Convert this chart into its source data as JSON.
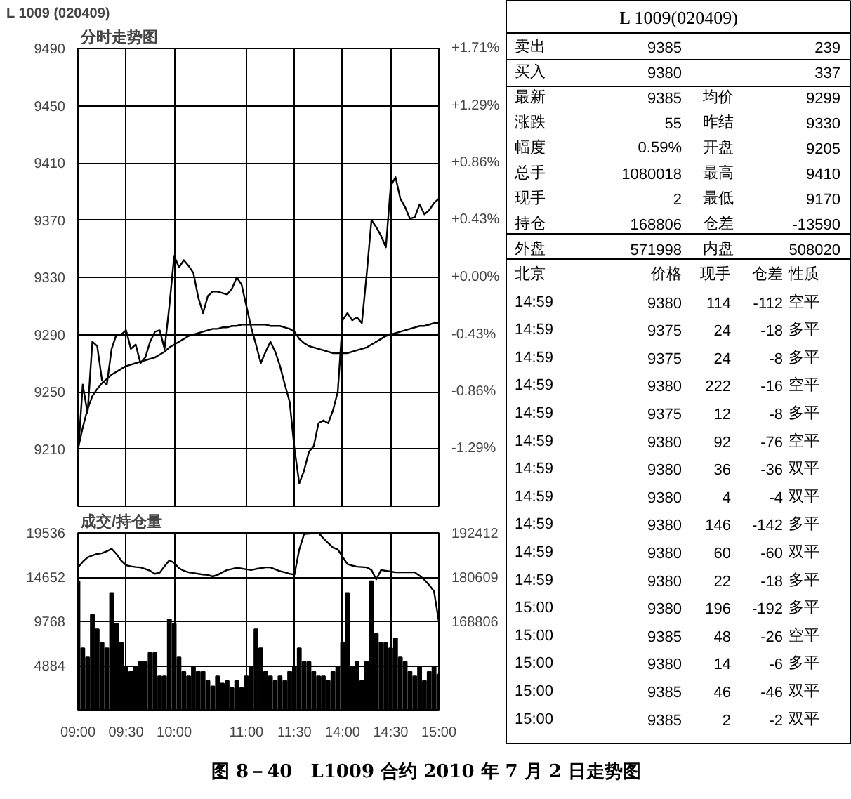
{
  "chart_data": [
    {
      "type": "line",
      "title": "分时走势图",
      "annotations": [
        "L    1009 (020409)"
      ],
      "categories": [
        null,
        null,
        null,
        null,
        null,
        null,
        null,
        null,
        null,
        null,
        null,
        null,
        null,
        null,
        null,
        null,
        null,
        null,
        null,
        null,
        null,
        null,
        null,
        null,
        null,
        null,
        null,
        null,
        null,
        null,
        null,
        null,
        null,
        null,
        null,
        null,
        null,
        null,
        null,
        null,
        null,
        null,
        null,
        null,
        null,
        null,
        null,
        null,
        null,
        null,
        null,
        null,
        null,
        null,
        null,
        null,
        null,
        null,
        null,
        null,
        null,
        null,
        null,
        null,
        null,
        null,
        null,
        null,
        null,
        null,
        null,
        null,
        null,
        null,
        null,
        null
      ],
      "ylim": [
        9170,
        9490
      ],
      "yticks": [
        9210,
        9250,
        9290,
        9330,
        9370,
        9410,
        9450,
        9490
      ],
      "y2lim": [
        -1.715,
        1.715
      ],
      "y2ticks": [
        {
          "value": -1.286,
          "label": "-1.29%"
        },
        {
          "value": -0.857,
          "label": "-0.86%"
        },
        {
          "value": -0.429,
          "label": "-0.43%"
        },
        {
          "value": 0,
          "label": "+0.00%"
        },
        {
          "value": 0.429,
          "label": "+0.43%"
        },
        {
          "value": 0.857,
          "label": "+0.86%"
        },
        {
          "value": 1.286,
          "label": "+1.29%"
        },
        {
          "value": 1.715,
          "label": "+1.71%"
        }
      ],
      "grid": true,
      "tick_labels": "y",
      "series": [
        {
          "color": "#000000",
          "values": [
            9205,
            9255,
            9235,
            9285,
            9282,
            9258,
            9255,
            9280,
            9290,
            9290,
            9293,
            9280,
            9283,
            9270,
            9274,
            9285,
            9292,
            9293,
            9280,
            9310,
            9345,
            9337,
            9342,
            9338,
            9333,
            9316,
            9305,
            9317,
            9320,
            9320,
            9319,
            9318,
            9322,
            9330,
            9325,
            9310,
            9295,
            9283,
            9270,
            9278,
            9285,
            9278,
            9268,
            9255,
            9243,
            9210,
            9186,
            9195,
            9208,
            9212,
            9228,
            9230,
            9228,
            9237,
            9250,
            9300,
            9305,
            9300,
            9302,
            9298,
            9332,
            9370,
            9365,
            9359,
            9351,
            9394,
            9400,
            9385,
            9379,
            9371,
            9372,
            9381,
            9374,
            9377,
            9382,
            9385
          ]
        },
        {
          "color": "#000000",
          "values": [
            9210,
            9225,
            9238,
            9247,
            9252,
            9256,
            9259,
            9262,
            9264,
            9266,
            9268,
            9269,
            9270,
            9271,
            9272,
            9273,
            9274,
            9276,
            9278,
            9281,
            9283,
            9285,
            9287,
            9289,
            9290,
            9291,
            9292,
            9293,
            9294,
            9294,
            9295,
            9295,
            9296,
            9296,
            9297,
            9297,
            9297,
            9297,
            9297,
            9297,
            9296,
            9296,
            9296,
            9295,
            9294,
            9292,
            9287,
            9284,
            9282,
            9281,
            9280,
            9279,
            9278,
            9277,
            9277,
            9277,
            9277,
            9278,
            9279,
            9280,
            9281,
            9283,
            9285,
            9287,
            9289,
            9290,
            9291,
            9292,
            9293,
            9294,
            9295,
            9296,
            9296,
            9297,
            9298,
            9298
          ]
        }
      ]
    },
    {
      "type": "bar",
      "title": "成交/持仓量",
      "categories": [
        "09:00",
        null,
        null,
        null,
        null,
        null,
        null,
        null,
        null,
        null,
        "09:30",
        null,
        null,
        null,
        null,
        null,
        null,
        null,
        null,
        null,
        "10:00",
        null,
        null,
        null,
        null,
        null,
        null,
        null,
        null,
        null,
        null,
        null,
        null,
        null,
        null,
        "11:00",
        null,
        null,
        null,
        null,
        null,
        null,
        null,
        null,
        null,
        "11:30",
        null,
        null,
        null,
        null,
        null,
        null,
        null,
        null,
        null,
        "14:00",
        null,
        null,
        null,
        null,
        null,
        null,
        null,
        null,
        null,
        "14:30",
        null,
        null,
        null,
        null,
        null,
        null,
        null,
        null,
        null,
        "15:00"
      ],
      "ylim": [
        0,
        19536
      ],
      "yticks": [
        4884,
        9768,
        14652,
        19536
      ],
      "y2lim": [
        145200,
        192412
      ],
      "y2ticks": [
        168806,
        180609,
        192412
      ],
      "grid": true,
      "series": [
        {
          "color": "#000000",
          "values": [
            14200,
            6800,
            5800,
            10500,
            8900,
            7400,
            6800,
            12900,
            9500,
            7400,
            4700,
            4200,
            4700,
            5300,
            5300,
            6300,
            6300,
            3700,
            3700,
            10000,
            9500,
            5800,
            4200,
            3700,
            4700,
            4200,
            4200,
            3200,
            2600,
            3700,
            2900,
            3200,
            2400,
            3200,
            2400,
            3700,
            4700,
            8900,
            6800,
            4200,
            3700,
            3200,
            3700,
            3200,
            4200,
            4700,
            6800,
            5300,
            5300,
            4200,
            3700,
            3700,
            3200,
            4200,
            4700,
            7400,
            12900,
            4700,
            5300,
            3200,
            5300,
            14200,
            8400,
            7400,
            7400,
            6800,
            7900,
            5800,
            5300,
            4200,
            3700,
            4700,
            3200,
            4200,
            4700,
            3900
          ]
        },
        {
          "type": "line",
          "axis": "y2",
          "color": "#000000",
          "values": [
            183200,
            184700,
            185900,
            186400,
            186800,
            187000,
            187500,
            188200,
            186800,
            185000,
            183800,
            183500,
            183300,
            183200,
            182800,
            182300,
            181500,
            181800,
            183500,
            185100,
            184400,
            183000,
            182300,
            181900,
            181700,
            181500,
            181300,
            181200,
            180800,
            181200,
            181900,
            182500,
            182800,
            183100,
            182900,
            182700,
            182500,
            182800,
            183000,
            183200,
            183200,
            182700,
            182200,
            181900,
            181500,
            181300,
            188000,
            192100,
            192200,
            192300,
            192400,
            191000,
            189700,
            188500,
            188000,
            186000,
            184100,
            183700,
            183400,
            183300,
            183200,
            182500,
            180000,
            182500,
            182300,
            182100,
            181900,
            181900,
            181900,
            181900,
            181900,
            181000,
            179900,
            178500,
            176800,
            168800
          ]
        }
      ]
    },
    {
      "type": "other",
      "title": "L 1009(020409)",
      "subtitle": "图 8－40　L1009 合约 2010 年 7 月 2 日走势图",
      "annotations": [
        "卖出",
        "9385",
        "239",
        "买入",
        "9380",
        "337",
        "最新",
        "9385",
        "均价",
        "9299",
        "涨跌",
        "55",
        "昨结",
        "9330",
        "幅度",
        "0.59%",
        "开盘",
        "9205",
        "总手",
        "1080018",
        "最高",
        "9410",
        "现手",
        "2",
        "最低",
        "9170",
        "持仓",
        "168806",
        "仓差",
        "-13590",
        "外盘",
        "571998",
        "内盘",
        "508020",
        "北京",
        "价格",
        "现手",
        "仓差",
        "性质",
        "14:59",
        "9380",
        "114",
        "-112",
        "空平",
        "14:59",
        "9375",
        "24",
        "-18",
        "多平",
        "14:59",
        "9375",
        "24",
        "-8",
        "多平",
        "14:59",
        "9380",
        "222",
        "-16",
        "空平",
        "14:59",
        "9375",
        "12",
        "-8",
        "多平",
        "14:59",
        "9380",
        "92",
        "-76",
        "空平",
        "14:59",
        "9380",
        "36",
        "-36",
        "双平",
        "14:59",
        "9380",
        "4",
        "-4",
        "双平",
        "14:59",
        "9380",
        "146",
        "-142",
        "多平",
        "14:59",
        "9380",
        "60",
        "-60",
        "双平",
        "14:59",
        "9380",
        "22",
        "-18",
        "多平",
        "15:00",
        "9380",
        "196",
        "-192",
        "多平",
        "15:00",
        "9385",
        "48",
        "-26",
        "空平",
        "15:00",
        "9380",
        "14",
        "-6",
        "多平",
        "15:00",
        "9385",
        "46",
        "-46",
        "双平",
        "15:00",
        "9385",
        "2",
        "-2",
        "双平"
      ]
    }
  ]
}
